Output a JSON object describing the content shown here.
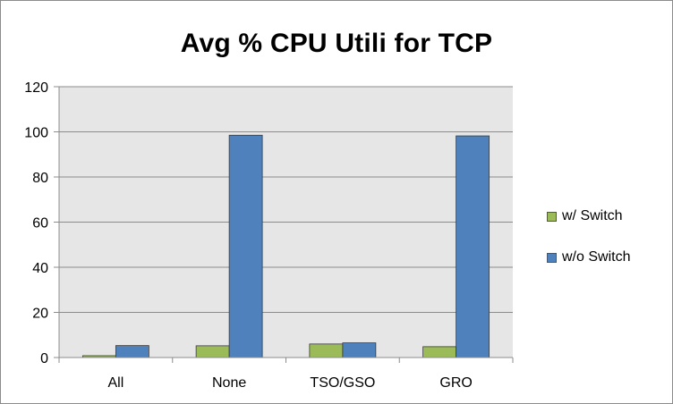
{
  "chart_data": {
    "type": "bar",
    "title": "Avg % CPU Utili for TCP",
    "categories": [
      "All",
      "None",
      "TSO/GSO",
      "GRO"
    ],
    "series": [
      {
        "name": "w/ Switch",
        "values": [
          0.8,
          5.2,
          6.0,
          4.8
        ],
        "color": "#9bbb59"
      },
      {
        "name": "w/o Switch",
        "values": [
          5.3,
          98.5,
          6.5,
          98.2
        ],
        "color": "#4f81bd"
      }
    ],
    "ylim": [
      0,
      120
    ],
    "yticks": [
      0,
      20,
      40,
      60,
      80,
      100,
      120
    ],
    "grid": true,
    "legend_position": "right",
    "plot_background": "#e6e6e6"
  }
}
